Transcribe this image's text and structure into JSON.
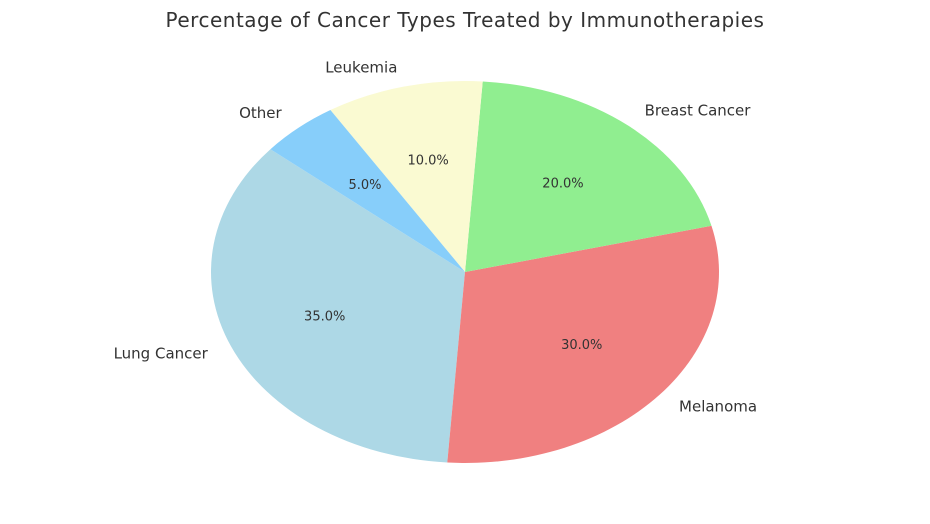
{
  "chart_data": {
    "type": "pie",
    "title": "Percentage of Cancer Types Treated by Immunotherapies",
    "categories": [
      "Lung Cancer",
      "Melanoma",
      "Breast Cancer",
      "Leukemia",
      "Other"
    ],
    "values": [
      35,
      30,
      20,
      10,
      5
    ],
    "value_labels": [
      "35.0%",
      "30.0%",
      "20.0%",
      "10.0%",
      "5.0%"
    ],
    "colors": [
      "#add8e6",
      "#f08080",
      "#90ee90",
      "#fafad2",
      "#87cefa"
    ],
    "start_angle_deg": 140,
    "direction": "counterclockwise",
    "legend": "none"
  }
}
